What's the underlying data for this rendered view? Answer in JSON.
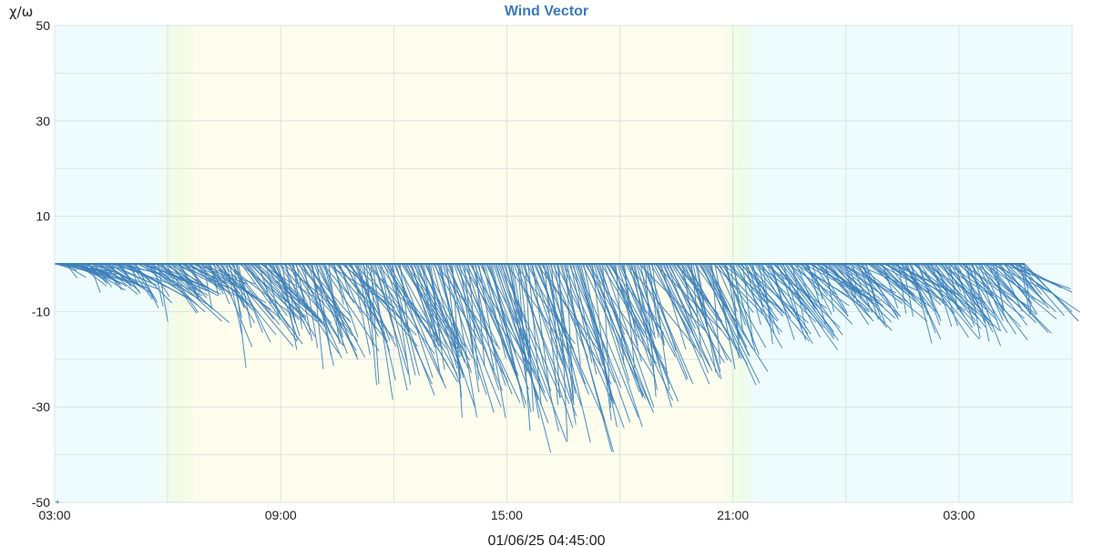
{
  "chart_data": {
    "type": "line",
    "title": "Wind Vector",
    "ylabel": "χ/ω",
    "xlabel": "",
    "footer": "01/06/25 04:45:00",
    "marker": "*",
    "ylim": [
      -50,
      50
    ],
    "y_ticks": [
      "50",
      "30",
      "10",
      "-10",
      "-30",
      "-50"
    ],
    "x_ticks": [
      "03:00",
      "09:00",
      "15:00",
      "21:00",
      "03:00"
    ],
    "grid": true,
    "colors": {
      "vector": "#3d7fb9",
      "title": "#3a7ab8",
      "night": "#effcfd",
      "day": "#fdfded",
      "grid": "#dde3e0"
    },
    "series": [
      {
        "values": [
          -2,
          -4,
          -6,
          -7,
          -5,
          -9,
          -11,
          -13,
          -8,
          -6,
          -10,
          -18,
          -22,
          -15,
          -12,
          -20,
          -17,
          -25,
          -19,
          -14,
          -22,
          -28,
          -30,
          -26,
          -24,
          -33,
          -35,
          -31,
          -29,
          -38,
          -40,
          -36,
          -34,
          -37,
          -42,
          -39,
          -35,
          -30,
          -33,
          -31,
          -27,
          -25,
          -22,
          -28,
          -23,
          -20,
          -18,
          -15,
          -20,
          -17,
          -14,
          -12,
          -15,
          -10,
          -13,
          -9,
          -11,
          -16,
          -18,
          -14,
          -12,
          -19,
          -16,
          -13,
          -10,
          -12
        ]
      }
    ]
  }
}
